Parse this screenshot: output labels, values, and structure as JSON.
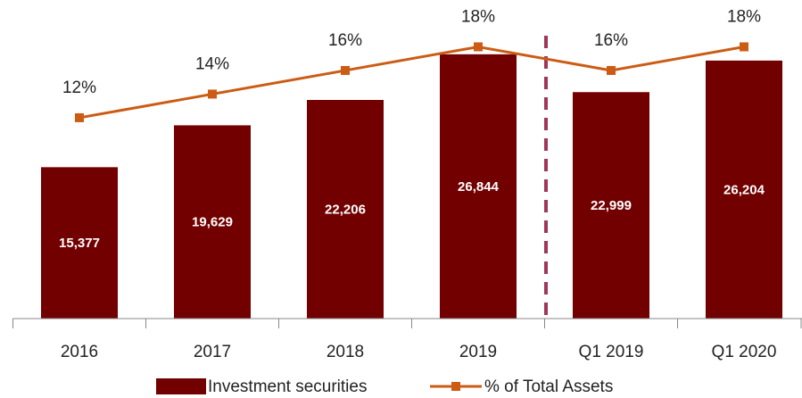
{
  "chart_data": {
    "type": "bar",
    "categories": [
      "2016",
      "2017",
      "2018",
      "2019",
      "Q1 2019",
      "Q1 2020"
    ],
    "series": [
      {
        "name": "Investment securities",
        "type": "bar",
        "color": "#720000",
        "values": [
          15377,
          19629,
          22206,
          26844,
          22999,
          26204
        ],
        "value_labels": [
          "15,377",
          "19,629",
          "22,206",
          "26,844",
          "22,999",
          "26,204"
        ]
      },
      {
        "name": "% of Total Assets",
        "type": "line",
        "axis": "y2",
        "color": "#cc5c14",
        "values": [
          12,
          14,
          16,
          18,
          16,
          18
        ],
        "value_labels": [
          "12%",
          "14%",
          "16%",
          "18%",
          "16%",
          "18%"
        ]
      }
    ],
    "ylim": [
      0,
      30000
    ],
    "y2lim": [
      -5,
      20
    ]
  }
}
